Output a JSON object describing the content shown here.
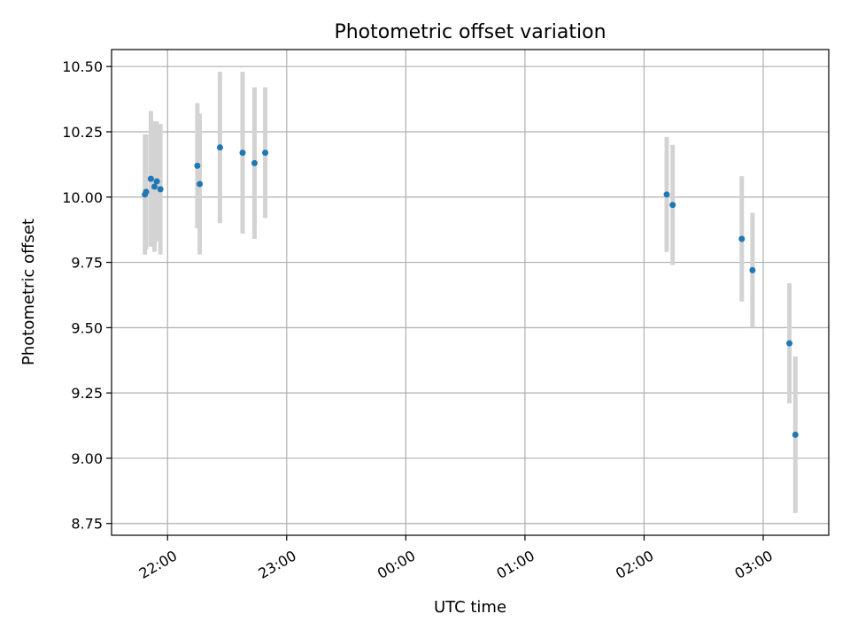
{
  "chart_data": {
    "type": "scatter",
    "title": "Photometric offset variation",
    "xlabel": "UTC time",
    "ylabel": "Photometric offset",
    "x_unit": "hours after 21:00 UTC",
    "xlim": [
      0.53,
      6.55
    ],
    "ylim": [
      8.705,
      10.565
    ],
    "grid": true,
    "x_ticks": [
      {
        "value": 1,
        "label": "22:00"
      },
      {
        "value": 2,
        "label": "23:00"
      },
      {
        "value": 3,
        "label": "00:00"
      },
      {
        "value": 4,
        "label": "01:00"
      },
      {
        "value": 5,
        "label": "02:00"
      },
      {
        "value": 6,
        "label": "03:00"
      }
    ],
    "y_ticks": [
      {
        "value": 8.75,
        "label": "8.75"
      },
      {
        "value": 9.0,
        "label": "9.00"
      },
      {
        "value": 9.25,
        "label": "9.25"
      },
      {
        "value": 9.5,
        "label": "9.50"
      },
      {
        "value": 9.75,
        "label": "9.75"
      },
      {
        "value": 10.0,
        "label": "10.00"
      },
      {
        "value": 10.25,
        "label": "10.25"
      },
      {
        "value": 10.5,
        "label": "10.50"
      }
    ],
    "marker_color": "#1f77b4",
    "errorbar_color": "#d3d3d3",
    "points": [
      {
        "x": 0.81,
        "y": 10.01,
        "err": 0.23
      },
      {
        "x": 0.82,
        "y": 10.02,
        "err": 0.22
      },
      {
        "x": 0.86,
        "y": 10.07,
        "err": 0.26
      },
      {
        "x": 0.89,
        "y": 10.04,
        "err": 0.25
      },
      {
        "x": 0.91,
        "y": 10.06,
        "err": 0.23
      },
      {
        "x": 0.94,
        "y": 10.03,
        "err": 0.25
      },
      {
        "x": 1.25,
        "y": 10.12,
        "err": 0.24
      },
      {
        "x": 1.27,
        "y": 10.05,
        "err": 0.27
      },
      {
        "x": 1.44,
        "y": 10.19,
        "err": 0.29
      },
      {
        "x": 1.63,
        "y": 10.17,
        "err": 0.31
      },
      {
        "x": 1.73,
        "y": 10.13,
        "err": 0.29
      },
      {
        "x": 1.82,
        "y": 10.17,
        "err": 0.25
      },
      {
        "x": 5.19,
        "y": 10.01,
        "err": 0.22
      },
      {
        "x": 5.24,
        "y": 9.97,
        "err": 0.23
      },
      {
        "x": 5.82,
        "y": 9.84,
        "err": 0.24
      },
      {
        "x": 5.91,
        "y": 9.72,
        "err": 0.22
      },
      {
        "x": 6.22,
        "y": 9.44,
        "err": 0.23
      },
      {
        "x": 6.27,
        "y": 9.09,
        "err": 0.3
      }
    ]
  }
}
